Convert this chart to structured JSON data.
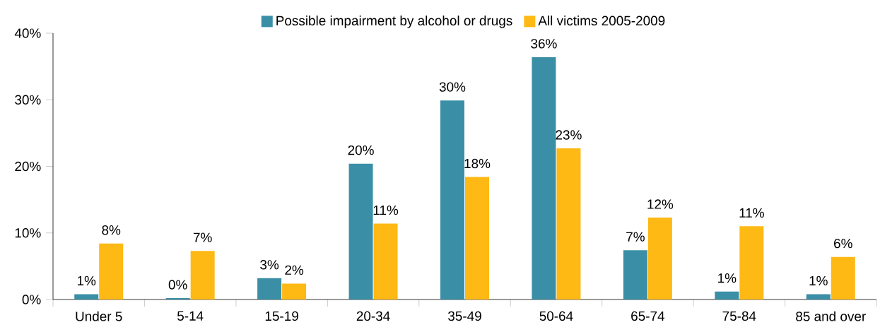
{
  "chart_data": {
    "type": "bar",
    "categories": [
      "Under 5",
      "5-14",
      "15-19",
      "20-34",
      "35-49",
      "50-64",
      "65-74",
      "75-84",
      "85 and over"
    ],
    "series": [
      {
        "name": "Possible impairment by alcohol or drugs",
        "color": "#3a8fa7",
        "values": [
          0.8,
          0.2,
          3.2,
          20.4,
          29.9,
          36.4,
          7.4,
          1.2,
          0.8
        ],
        "value_labels": [
          "1%",
          "0%",
          "3%",
          "20%",
          "30%",
          "36%",
          "7%",
          "1%",
          "1%"
        ]
      },
      {
        "name": "All victims 2005-2009",
        "color": "#ffb915",
        "values": [
          8.4,
          7.3,
          2.4,
          11.4,
          18.4,
          22.7,
          12.3,
          11.0,
          6.4
        ],
        "value_labels": [
          "8%",
          "7%",
          "2%",
          "11%",
          "18%",
          "23%",
          "12%",
          "11%",
          "6%"
        ]
      }
    ],
    "ylim": [
      0,
      40
    ],
    "yticks": [
      {
        "value": 0,
        "label": "0%"
      },
      {
        "value": 10,
        "label": "10%"
      },
      {
        "value": 20,
        "label": "20%"
      },
      {
        "value": 30,
        "label": "30%"
      },
      {
        "value": 40,
        "label": "40%"
      }
    ],
    "legend": "top"
  }
}
